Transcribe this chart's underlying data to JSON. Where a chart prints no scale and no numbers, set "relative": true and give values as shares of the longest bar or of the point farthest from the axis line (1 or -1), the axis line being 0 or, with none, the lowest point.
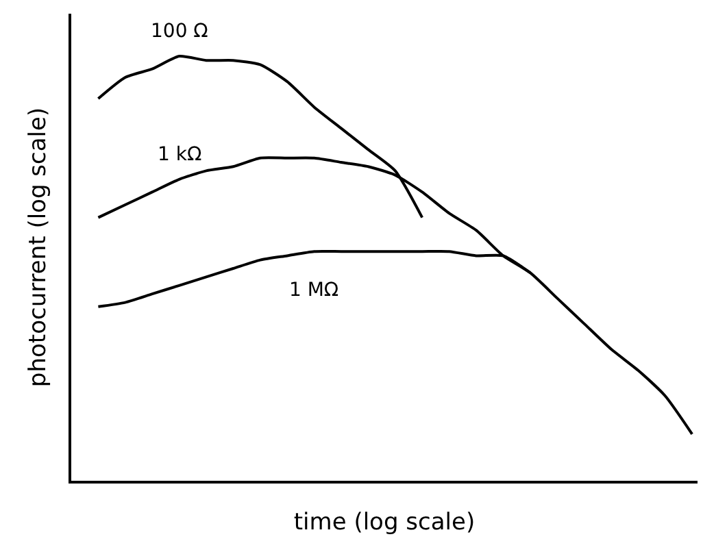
{
  "chart_data": {
    "type": "line",
    "relative": true,
    "xlabel": "time (log scale)",
    "ylabel": "photocurrent (log scale)",
    "categories": [
      null,
      null,
      null,
      null,
      null,
      null,
      null,
      null,
      null,
      null,
      null,
      null,
      null,
      null,
      null,
      null,
      null,
      null,
      null,
      null,
      null,
      null,
      null
    ],
    "series": [
      {
        "name": "100 Ω",
        "color": "#000000",
        "values": [
          0.9,
          0.95,
          0.97,
          1.0,
          0.99,
          0.99,
          0.98,
          0.94,
          0.88,
          0.83,
          0.78,
          0.73,
          0.62,
          null,
          null,
          null,
          null,
          null,
          null,
          null,
          null,
          null,
          null
        ]
      },
      {
        "name": "1 kΩ",
        "color": "#000000",
        "values": [
          0.62,
          0.65,
          0.68,
          0.71,
          0.73,
          0.74,
          0.76,
          0.76,
          0.76,
          0.75,
          0.74,
          0.72,
          0.68,
          0.63,
          0.59,
          0.53,
          0.49,
          0.43,
          0.37,
          0.31,
          0.26,
          0.2,
          0.11
        ]
      },
      {
        "name": "1 MΩ",
        "color": "#000000",
        "values": [
          0.41,
          0.42,
          0.44,
          0.46,
          0.48,
          0.5,
          0.52,
          0.53,
          0.54,
          0.54,
          0.54,
          0.54,
          0.54,
          0.54,
          0.53,
          0.53,
          0.49,
          null,
          null,
          null,
          null,
          null,
          null
        ]
      }
    ],
    "legend": false,
    "marker": "none",
    "line_style": "solid"
  }
}
